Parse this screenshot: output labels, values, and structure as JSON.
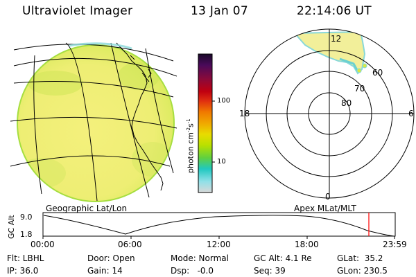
{
  "header": {
    "instrument": "Ultraviolet Imager",
    "date": "13 Jan 07",
    "time": "22:14:06 UT"
  },
  "colorbar": {
    "label": "photon cm",
    "label_sup1": "-2",
    "label_s": "s",
    "label_sup2": "-1",
    "tick_100": "100",
    "tick_10": "10",
    "colors_top_to_bottom": [
      "#1a0a2a",
      "#4a0a5a",
      "#8a0a3a",
      "#c00010",
      "#e03010",
      "#f07a00",
      "#f0a800",
      "#e8dc00",
      "#b8e000",
      "#60d040",
      "#20c8c0",
      "#90e0e8",
      "#d8d8d8"
    ]
  },
  "polar_plot": {
    "mlt_top": "12",
    "mlt_left": "18",
    "mlt_right": "6",
    "mlt_bottom": "0",
    "lat_60": "60",
    "lat_70": "70",
    "lat_80": "80"
  },
  "panel_titles": {
    "left": "Geographic Lat/Lon",
    "right": "Apex MLat/MLT"
  },
  "altitude_plot": {
    "ylabel": "GC Alt",
    "ytick_top": "9.0",
    "ytick_bottom": "1.8",
    "xticks": [
      "00:00",
      "06:00",
      "12:00",
      "18:00",
      "23:59"
    ],
    "marker_color": "#ff0000"
  },
  "footer": {
    "flt": "Flt: LBHL",
    "door": "Door: Open",
    "mode": "Mode: Normal",
    "gcalt": "GC Alt: 4.1 Re",
    "glat": "GLat:  35.2",
    "ip": "IP: 36.0",
    "gain": "Gain: 14",
    "dsp": "Dsp:   -0.0",
    "seq": "Seq: 39",
    "glon": "GLon: 230.5"
  },
  "colors": {
    "earth_fill": "#f0ee78",
    "earth_edge": "#b8e040",
    "aurora_fill": "#f2ef9a",
    "aurora_edge": "#88d8d8",
    "line": "#000000"
  }
}
